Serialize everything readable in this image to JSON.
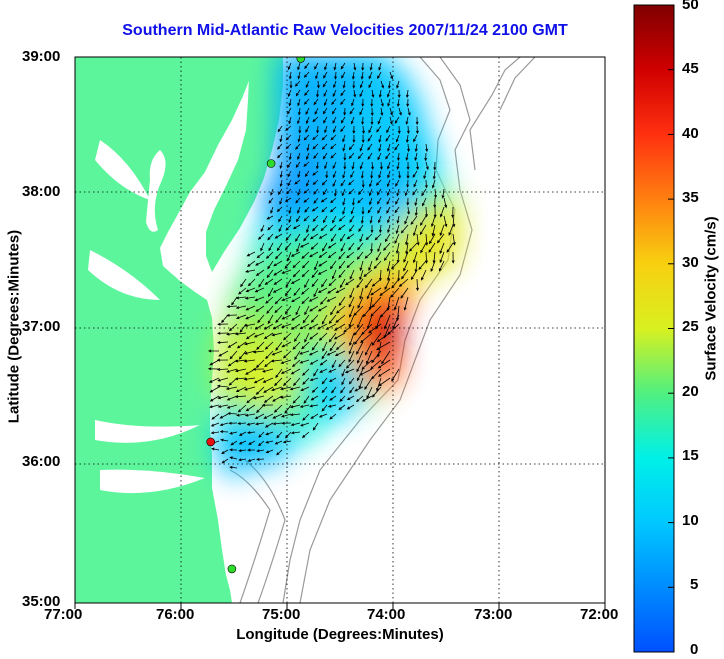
{
  "chart": {
    "title": "Southern Mid-Atlantic Raw Velocities 2007/11/24 2100 GMT",
    "xlabel": "Longitude (Degrees:Minutes)",
    "ylabel": "Latitude (Degrees:Minutes)",
    "x_ticks": [
      "77:00",
      "76:00",
      "75:00",
      "74:00",
      "73:00",
      "72:00"
    ],
    "y_ticks": [
      "39:00",
      "38:00",
      "37:00",
      "36:00",
      "35:00"
    ],
    "colorbar": {
      "label": "Surface Velocity (cm/s)",
      "ticks": [
        "50",
        "45",
        "40",
        "35",
        "30",
        "25",
        "20",
        "15",
        "10",
        "5",
        "0"
      ]
    }
  },
  "colors": {
    "land": "#5df59c",
    "contour": "#9a9a9a",
    "title": "#1010e8",
    "station_active": "#2edc2e",
    "station_alert": "#e81010"
  },
  "chart_data": {
    "type": "map",
    "map_type": "surface current vector field",
    "x_range_deg_west": [
      77,
      72
    ],
    "y_range_deg_north": [
      35,
      39
    ],
    "colorbar_range_cm_s": [
      0,
      50
    ],
    "grid": true,
    "stations": [
      {
        "lon": -74.87,
        "lat": 38.99,
        "status": "active"
      },
      {
        "lon": -75.15,
        "lat": 38.22,
        "status": "active"
      },
      {
        "lon": -75.72,
        "lat": 36.18,
        "status": "alert"
      },
      {
        "lon": -75.52,
        "lat": 35.25,
        "status": "active"
      }
    ],
    "speed_regions": [
      {
        "lon": -75.0,
        "lat": 38.05,
        "speed": 6
      },
      {
        "lon": -74.7,
        "lat": 38.6,
        "speed": 8
      },
      {
        "lon": -74.1,
        "lat": 38.45,
        "speed": 10
      },
      {
        "lon": -74.0,
        "lat": 37.95,
        "speed": 8
      },
      {
        "lon": -73.7,
        "lat": 37.7,
        "speed": 27
      },
      {
        "lon": -74.8,
        "lat": 37.4,
        "speed": 20
      },
      {
        "lon": -75.2,
        "lat": 36.6,
        "speed": 25
      },
      {
        "lon": -74.45,
        "lat": 36.6,
        "speed": 10
      },
      {
        "lon": -74.0,
        "lat": 36.9,
        "speed": 46
      },
      {
        "lon": -74.15,
        "lat": 36.72,
        "speed": 38
      },
      {
        "lon": -75.3,
        "lat": 36.1,
        "speed": 9
      }
    ]
  }
}
